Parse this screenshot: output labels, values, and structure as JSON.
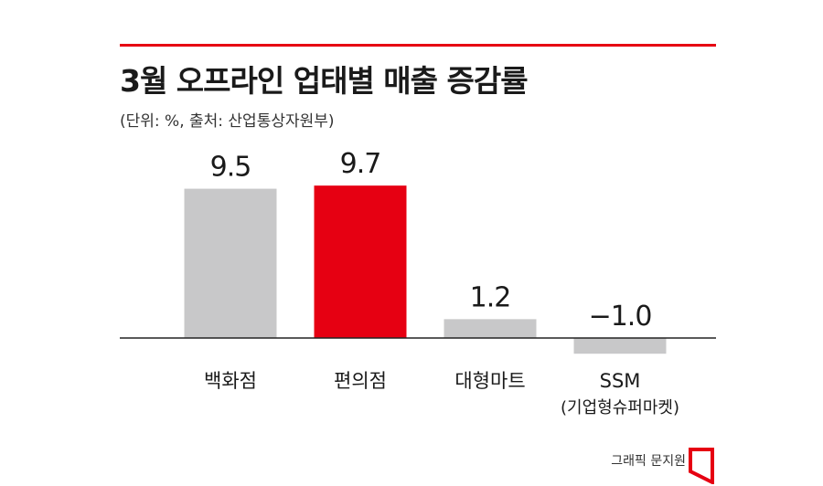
{
  "header": {
    "title": "3월 오프라인 업태별 매출 증감률",
    "subtitle": "(단위: %, 출처: 산업통상자원부)"
  },
  "chart_data": {
    "type": "bar",
    "categories": [
      "백화점",
      "편의점",
      "대형마트",
      "SSM"
    ],
    "category_sublabels": [
      "",
      "",
      "",
      "(기업형슈퍼마켓)"
    ],
    "values": [
      9.5,
      9.7,
      1.2,
      -1.0
    ],
    "value_labels": [
      "9.5",
      "9.7",
      "1.2",
      "−1.0"
    ],
    "colors": [
      "#c8c8c9",
      "#e60012",
      "#c8c8c9",
      "#c8c8c9"
    ],
    "ylim": [
      -1.5,
      10
    ],
    "grid": false
  },
  "footer": {
    "credit": "그래픽 문지원"
  },
  "colors": {
    "accent": "#e60012",
    "bar_default": "#c8c8c9",
    "baseline": "#222222"
  }
}
